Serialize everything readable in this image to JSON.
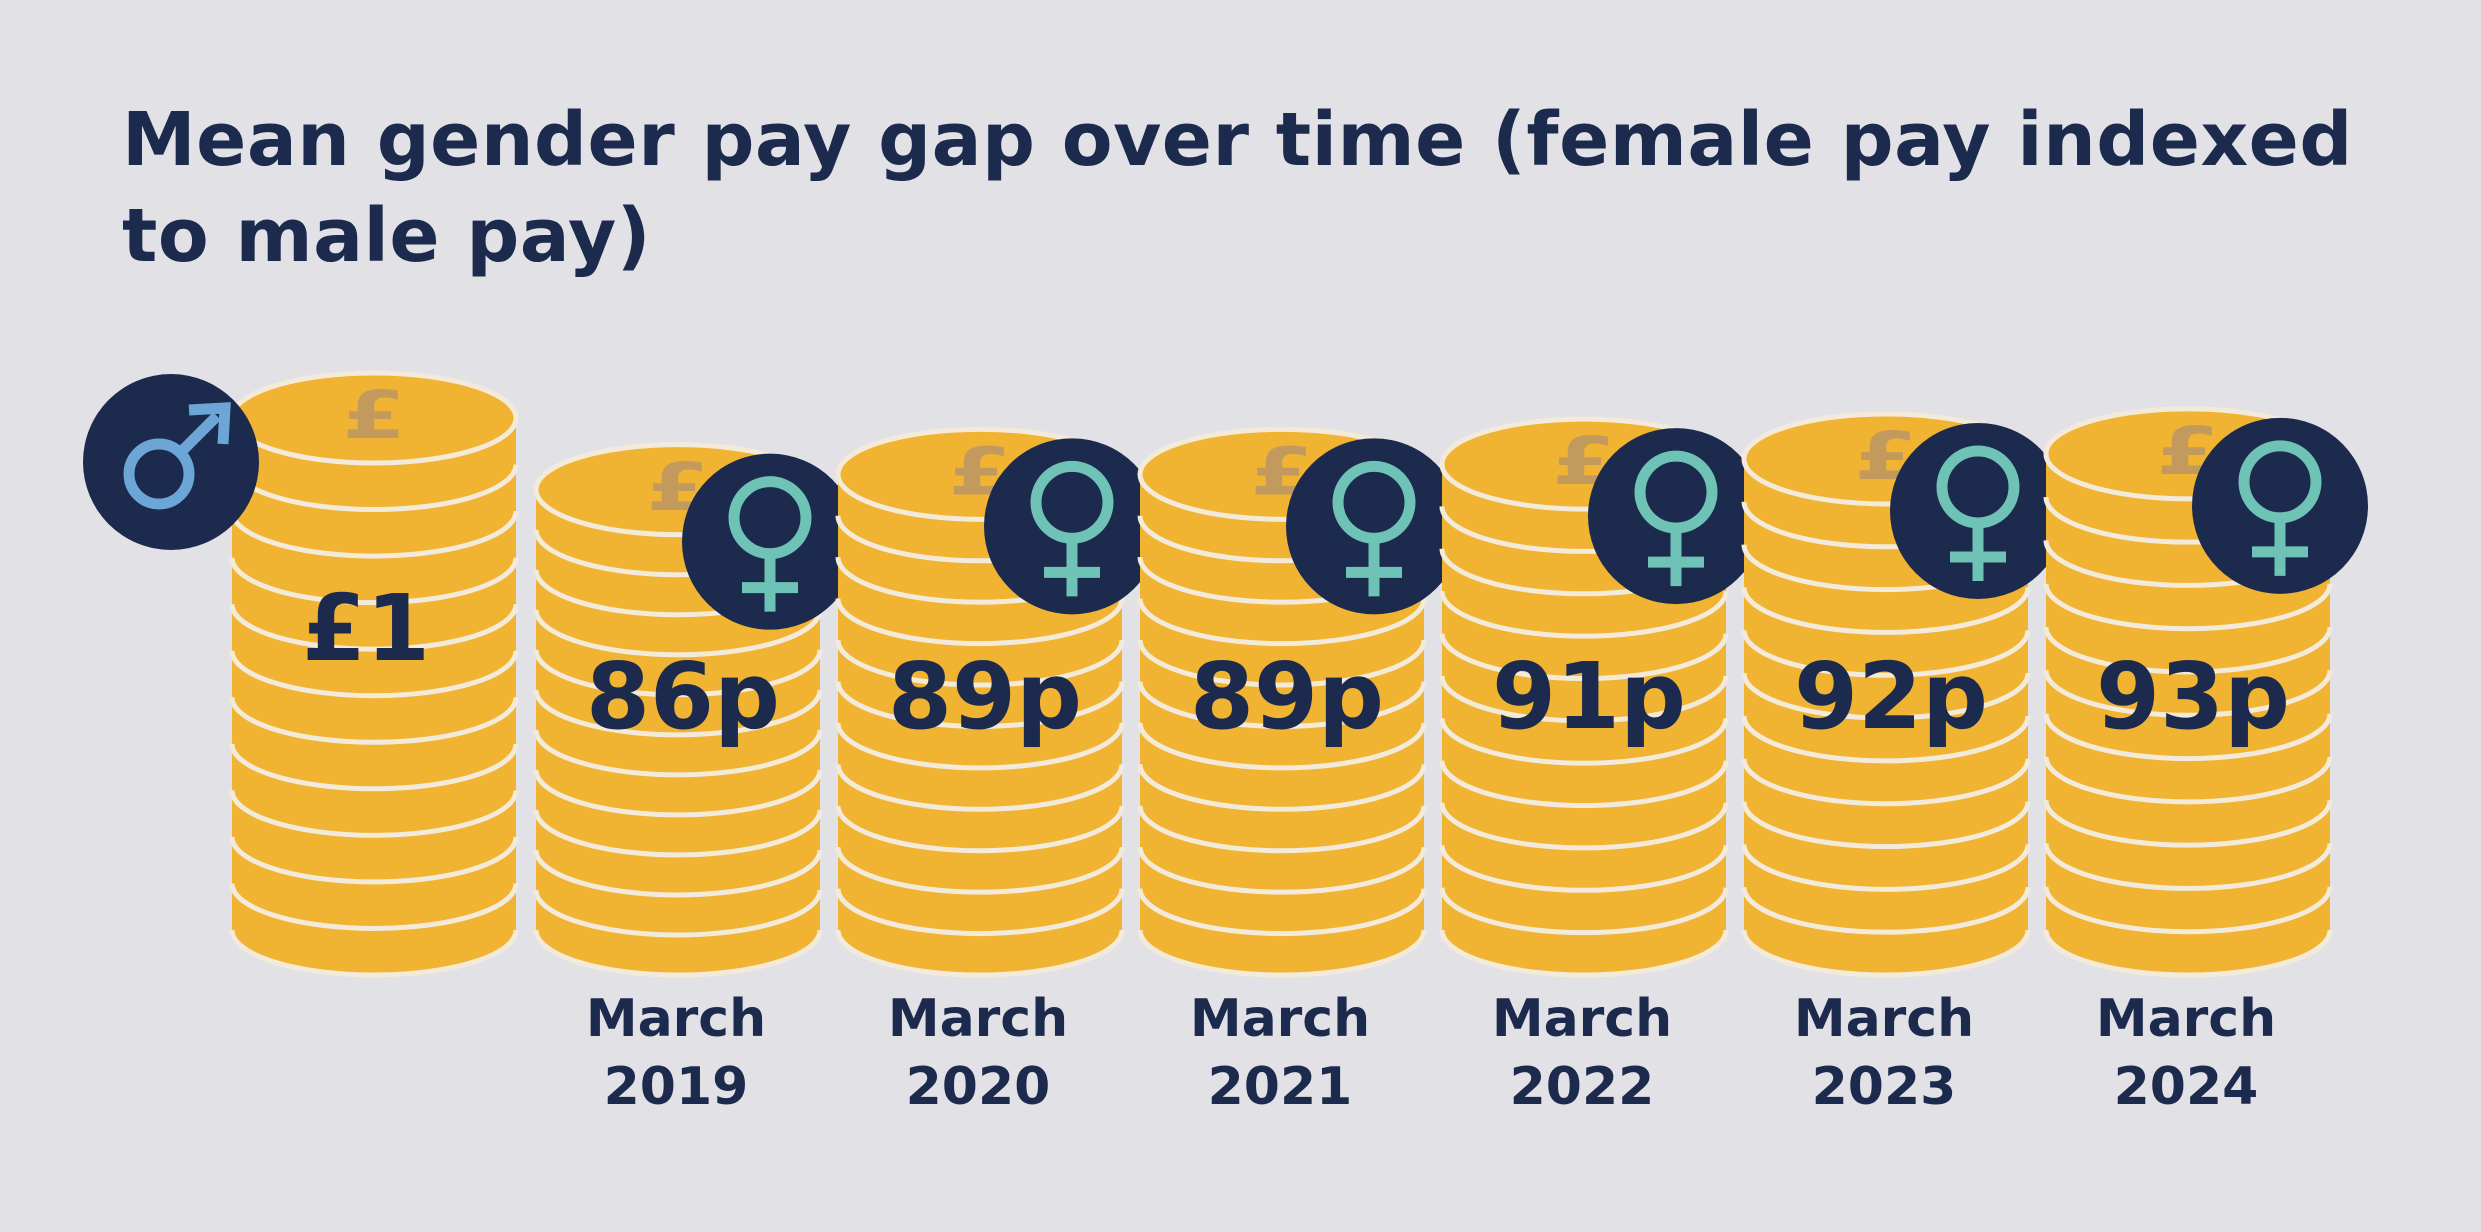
{
  "title": "Mean gender pay gap over time (female pay indexed to male pay)",
  "colors": {
    "background": "#e2e1e6",
    "text": "#1c2a4d",
    "coin": "#f0b332",
    "coin_stroke": "#f3ead9",
    "pound_symbol": "#c29a5e",
    "icon_circle": "#1c2a4d",
    "male_symbol": "#6ba6d6",
    "female_symbol": "#6fc3b6"
  },
  "reference": {
    "label": "£1",
    "value": 100,
    "icon": "male-symbol-icon"
  },
  "chart_data": {
    "type": "bar",
    "title": "Mean gender pay gap over time (female pay indexed to male pay)",
    "categories": [
      [
        "March",
        "2019"
      ],
      [
        "March",
        "2020"
      ],
      [
        "March",
        "2021"
      ],
      [
        "March",
        "2022"
      ],
      [
        "March",
        "2023"
      ],
      [
        "March",
        "2024"
      ]
    ],
    "values": [
      86,
      89,
      89,
      91,
      92,
      93
    ],
    "value_labels": [
      "86p",
      "89p",
      "89p",
      "91p",
      "92p",
      "93p"
    ],
    "unit": "p",
    "icon": "female-symbol-icon",
    "mark_style": "coin-stacks"
  }
}
